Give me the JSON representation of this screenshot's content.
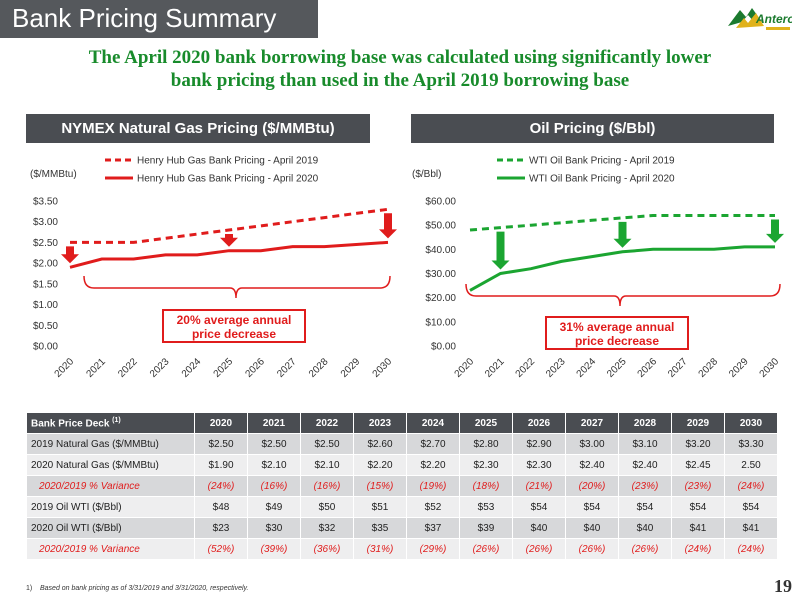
{
  "title": "Bank Pricing Summary",
  "logo_text": "Antero",
  "headline": {
    "line1": "The April 2020 bank borrowing base was calculated using significantly lower",
    "line2": "bank pricing than used in the April 2019 borrowing base"
  },
  "colors": {
    "gas": "#e01c1c",
    "oil": "#1ba531",
    "header_bg": "#4a4d52",
    "headline": "#188b2b"
  },
  "chart_data": [
    {
      "type": "line",
      "title": "NYMEX Natural Gas Pricing ($/MMBtu)",
      "unit_label": "($/MMBtu)",
      "x": [
        "2020",
        "2021",
        "2022",
        "2023",
        "2024",
        "2025",
        "2026",
        "2027",
        "2028",
        "2029",
        "2030"
      ],
      "series": [
        {
          "name": "Henry Hub Gas Bank Pricing - April 2019",
          "style": "dashed",
          "values": [
            2.5,
            2.5,
            2.5,
            2.6,
            2.7,
            2.8,
            2.9,
            3.0,
            3.1,
            3.2,
            3.3
          ]
        },
        {
          "name": "Henry Hub Gas Bank Pricing - April 2020",
          "style": "solid",
          "values": [
            1.9,
            2.1,
            2.1,
            2.2,
            2.2,
            2.3,
            2.3,
            2.4,
            2.4,
            2.45,
            2.5
          ]
        }
      ],
      "yticks": [
        "$0.00",
        "$0.50",
        "$1.00",
        "$1.50",
        "$2.00",
        "$2.50",
        "$3.00",
        "$3.50"
      ],
      "ylim": [
        0,
        3.5
      ],
      "arrows_at": [
        "2020",
        "2025",
        "2030"
      ],
      "callout": {
        "line1": "20% average annual",
        "line2": "price decrease"
      },
      "color": "#e01c1c"
    },
    {
      "type": "line",
      "title": "Oil Pricing ($/Bbl)",
      "unit_label": "($/Bbl)",
      "x": [
        "2020",
        "2021",
        "2022",
        "2023",
        "2024",
        "2025",
        "2026",
        "2027",
        "2028",
        "2029",
        "2030"
      ],
      "series": [
        {
          "name": "WTI Oil Bank Pricing - April 2019",
          "style": "dashed",
          "values": [
            48,
            49,
            50,
            51,
            52,
            53,
            54,
            54,
            54,
            54,
            54
          ]
        },
        {
          "name": "WTI Oil Bank Pricing - April 2020",
          "style": "solid",
          "values": [
            23,
            30,
            32,
            35,
            37,
            39,
            40,
            40,
            40,
            41,
            41
          ]
        }
      ],
      "yticks": [
        "$0.00",
        "$10.00",
        "$20.00",
        "$30.00",
        "$40.00",
        "$50.00",
        "$60.00"
      ],
      "ylim": [
        0,
        60
      ],
      "arrows_at": [
        "2021",
        "2025",
        "2030"
      ],
      "callout": {
        "line1": "31% average annual",
        "line2": "price decrease"
      },
      "color": "#1ba531"
    }
  ],
  "table": {
    "header": [
      "Bank Price Deck",
      "2020",
      "2021",
      "2022",
      "2023",
      "2024",
      "2025",
      "2026",
      "2027",
      "2028",
      "2029",
      "2030"
    ],
    "header_note": "(1)",
    "rows": [
      {
        "label": "2019 Natural Gas ($/MMBtu)",
        "variance": false,
        "cells": [
          "$2.50",
          "$2.50",
          "$2.50",
          "$2.60",
          "$2.70",
          "$2.80",
          "$2.90",
          "$3.00",
          "$3.10",
          "$3.20",
          "$3.30"
        ]
      },
      {
        "label": "2020 Natural Gas ($/MMBtu)",
        "variance": false,
        "cells": [
          "$1.90",
          "$2.10",
          "$2.10",
          "$2.20",
          "$2.20",
          "$2.30",
          "$2.30",
          "$2.40",
          "$2.40",
          "$2.45",
          "2.50"
        ]
      },
      {
        "label": "2020/2019 % Variance",
        "variance": true,
        "cells": [
          "(24%)",
          "(16%)",
          "(16%)",
          "(15%)",
          "(19%)",
          "(18%)",
          "(21%)",
          "(20%)",
          "(23%)",
          "(23%)",
          "(24%)"
        ]
      },
      {
        "label": "2019 Oil WTI ($/Bbl)",
        "variance": false,
        "cells": [
          "$48",
          "$49",
          "$50",
          "$51",
          "$52",
          "$53",
          "$54",
          "$54",
          "$54",
          "$54",
          "$54"
        ]
      },
      {
        "label": "2020 Oil WTI ($/Bbl)",
        "variance": false,
        "cells": [
          "$23",
          "$30",
          "$32",
          "$35",
          "$37",
          "$39",
          "$40",
          "$40",
          "$40",
          "$41",
          "$41"
        ]
      },
      {
        "label": "2020/2019 % Variance",
        "variance": true,
        "cells": [
          "(52%)",
          "(39%)",
          "(36%)",
          "(31%)",
          "(29%)",
          "(26%)",
          "(26%)",
          "(26%)",
          "(26%)",
          "(24%)",
          "(24%)"
        ]
      }
    ]
  },
  "footnote": {
    "number": "1)",
    "text": "Based on bank pricing as of 3/31/2019 and 3/31/2020, respectively."
  },
  "page_number": "19"
}
